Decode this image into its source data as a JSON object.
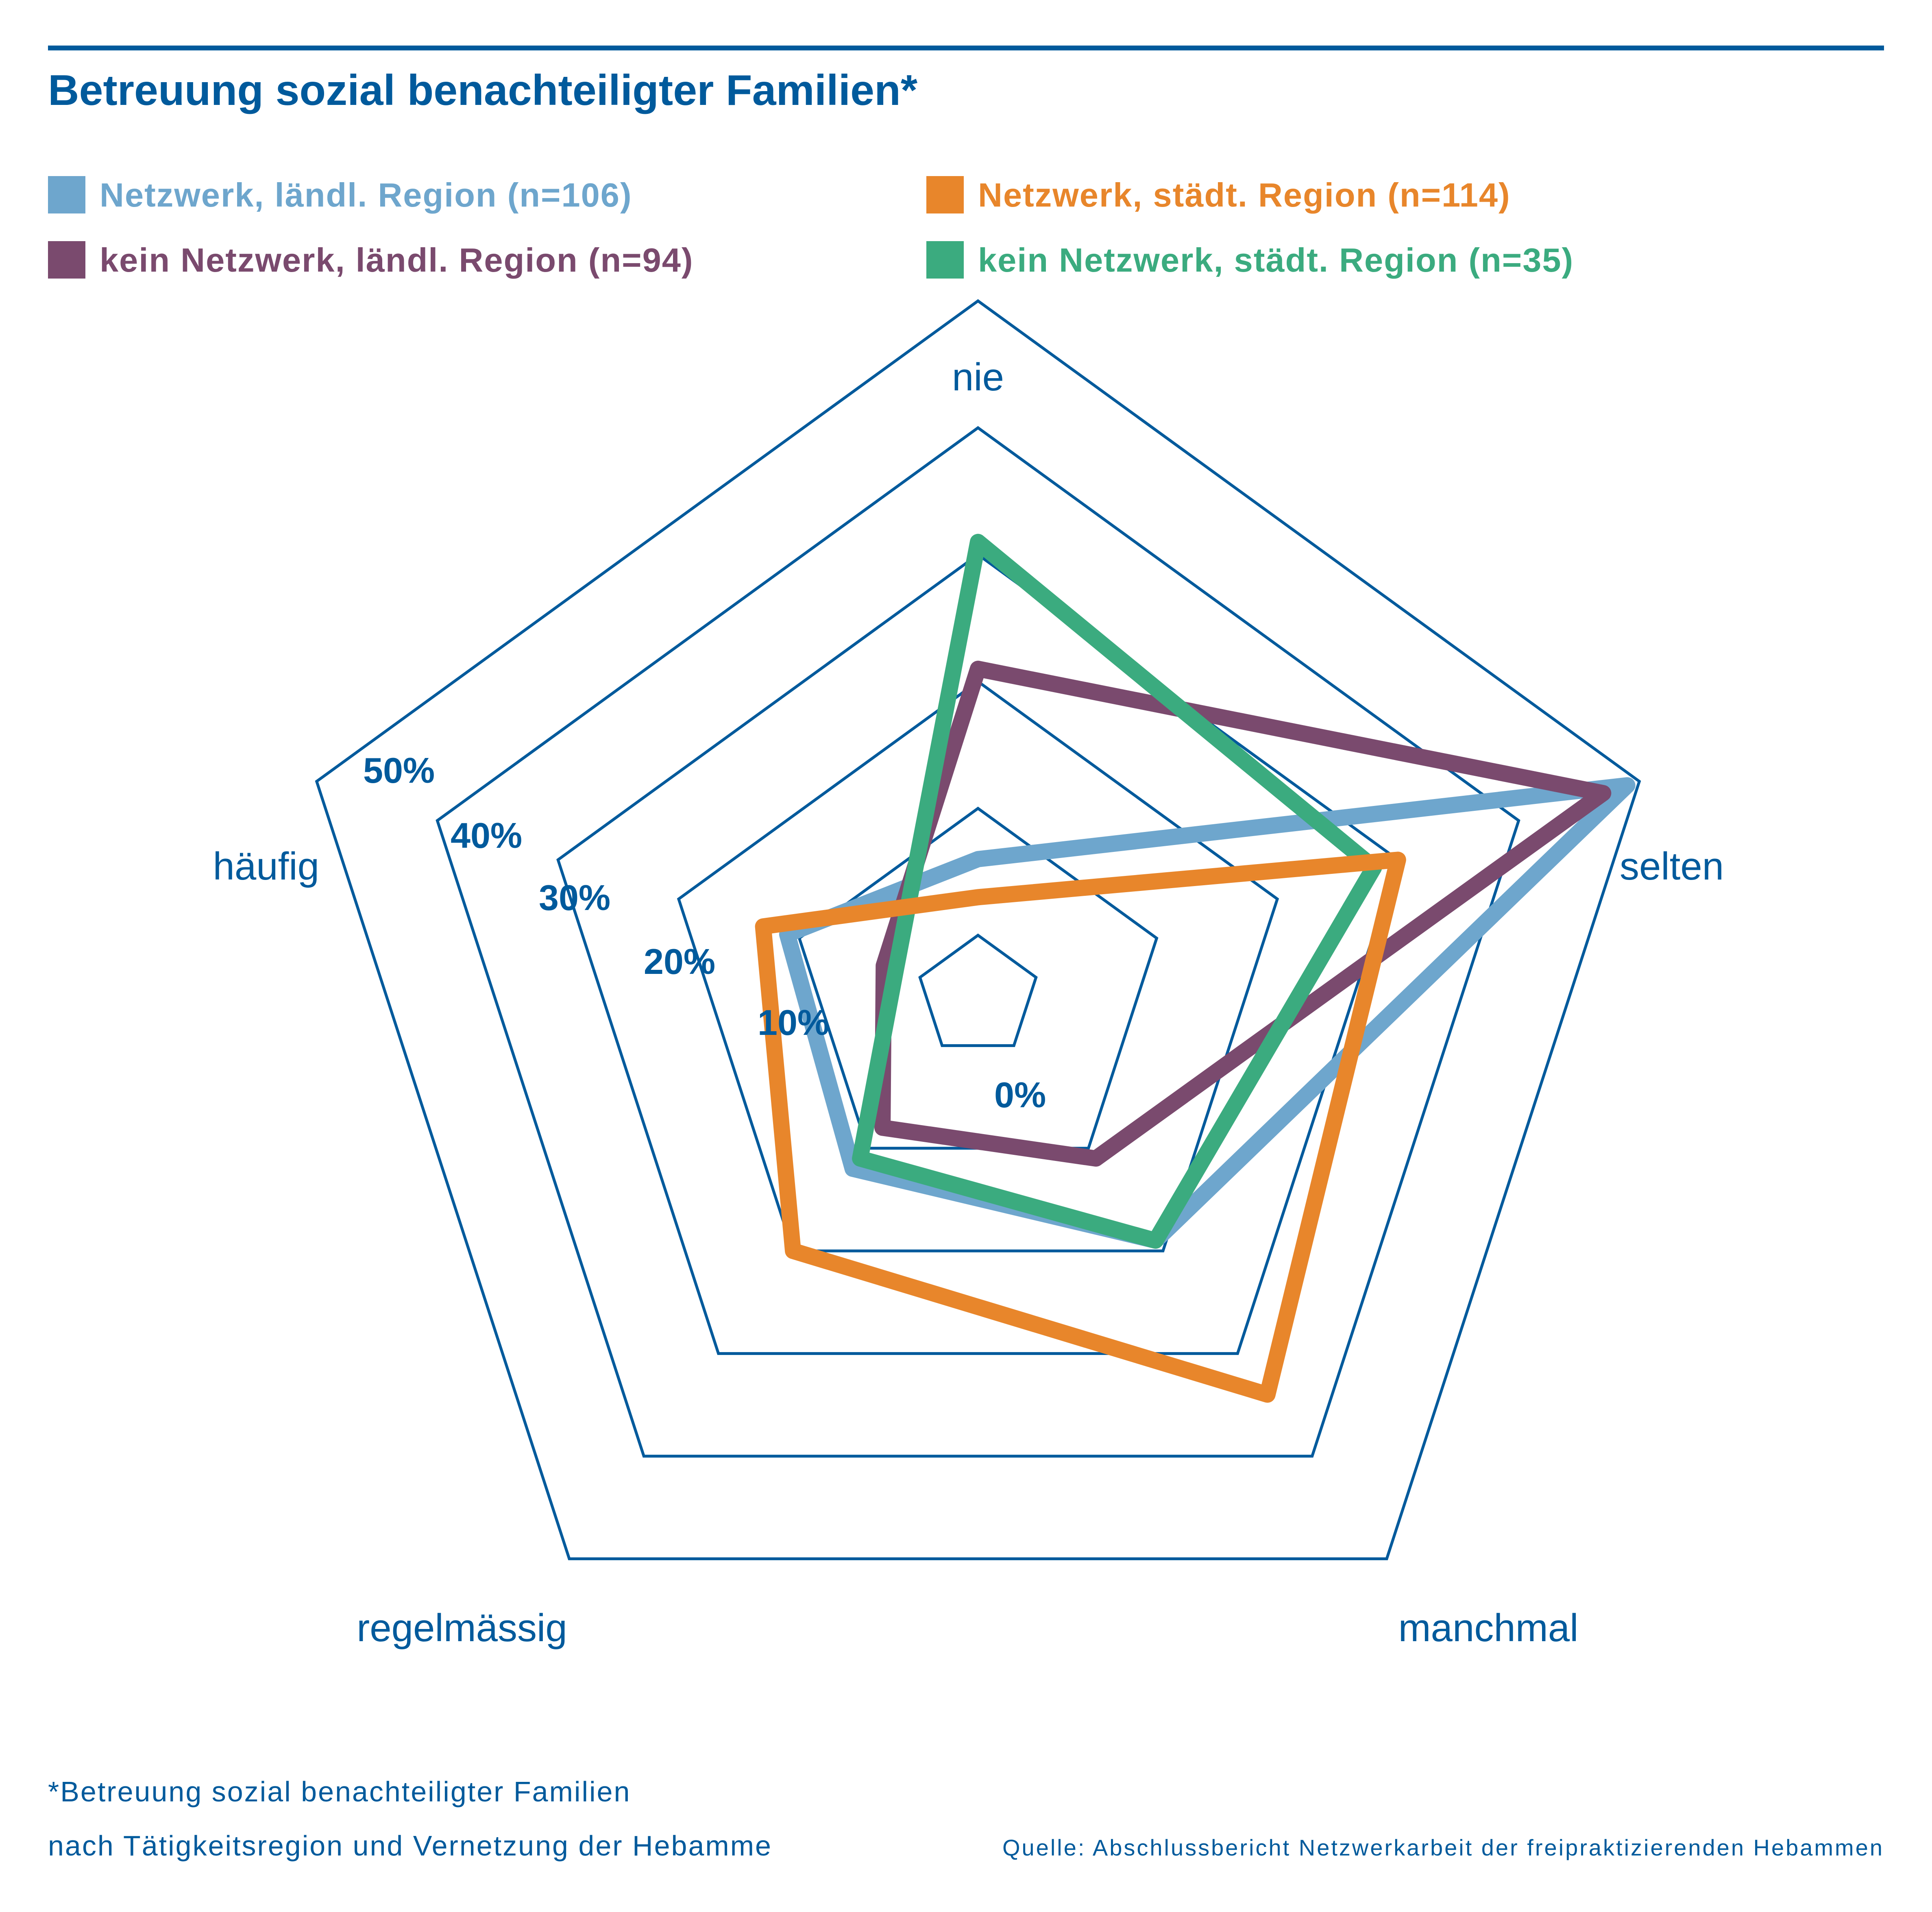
{
  "chart_data": {
    "type": "radar",
    "title": "Betreuung sozial benachteiligter Familien*",
    "axes": [
      "nie",
      "selten",
      "manchmal",
      "regelmässig",
      "häufig"
    ],
    "rlim": [
      0,
      50
    ],
    "ticks": [
      {
        "value": 0,
        "label": "0%"
      },
      {
        "value": 10,
        "label": "10%"
      },
      {
        "value": 20,
        "label": "20%"
      },
      {
        "value": 30,
        "label": "30%"
      },
      {
        "value": 40,
        "label": "40%"
      },
      {
        "value": 50,
        "label": "50%"
      }
    ],
    "grid": true,
    "legend_position": "top",
    "series": [
      {
        "name": "Netzwerk, ländl. Region (n=106)",
        "color": "#6ea6cd",
        "values": [
          6,
          49,
          19,
          12,
          11
        ]
      },
      {
        "name": "kein Netzwerk, ländl. Region (n=94)",
        "color": "#7a4a6e",
        "values": [
          21,
          47,
          11,
          8,
          3
        ]
      },
      {
        "name": "kein Netzwerk, städt. Region (n=35)",
        "color": "#3bab7f",
        "values": [
          31,
          28,
          19,
          11,
          2
        ]
      },
      {
        "name": "Netzwerk, städt. Region (n=114)",
        "color": "#e8862b",
        "values": [
          3,
          30,
          34,
          20,
          13
        ]
      }
    ],
    "footnote": [
      "*Betreuung sozial benachteiligter Familien",
      "nach Tätigkeitsregion und Vernetzung der Hebamme"
    ],
    "source": "Quelle: Abschlussbericht Netzwerkarbeit der freipraktizierenden Hebammen"
  },
  "colors": {
    "text": "#005a9c",
    "grid": "#005a9c"
  }
}
